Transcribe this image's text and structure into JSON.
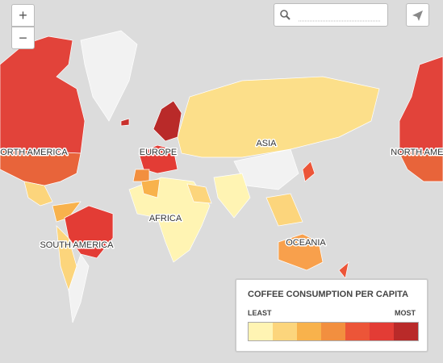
{
  "controls": {
    "zoom_in": "+",
    "zoom_out": "−"
  },
  "map": {
    "labels": [
      "NORTH AMERICA",
      "EUROPE",
      "ASIA",
      "AFRICA",
      "SOUTH AMERICA",
      "OCEANIA",
      "NORTH AMERICA"
    ]
  },
  "legend": {
    "title": "COFFEE CONSUMPTION PER CAPITA",
    "least": "LEAST",
    "most": "MOST",
    "colors": [
      "#fff4b3",
      "#fcd57c",
      "#f8b24c",
      "#f28f3f",
      "#ec5538",
      "#e33c35",
      "#b92a29"
    ]
  }
}
